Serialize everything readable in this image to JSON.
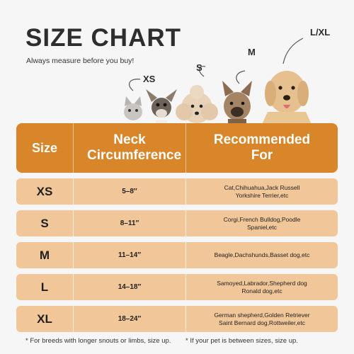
{
  "header": {
    "title": "SIZE CHART",
    "subtitle": "Always measure before you buy!"
  },
  "hero": {
    "labels": [
      "XS",
      "S",
      "M",
      "L/XL"
    ]
  },
  "table": {
    "columns": [
      "Size",
      "Neck Circumference",
      "Recommended For"
    ],
    "rows": [
      {
        "size": "XS",
        "neck": "5–8″",
        "rec_line1": "Cat,Chihuahua,Jack Russell",
        "rec_line2": "Yorkshire Terrier,etc"
      },
      {
        "size": "S",
        "neck": "8–11″",
        "rec_line1": "Corgi,French Bulldog,Poodle",
        "rec_line2": "Spaniel,etc"
      },
      {
        "size": "M",
        "neck": "11–14″",
        "rec_line1": "Beagle,Dachshunds,Basset dog,etc",
        "rec_line2": ""
      },
      {
        "size": "L",
        "neck": "14–18″",
        "rec_line1": "Samoyed,Labrador,Shepherd dog",
        "rec_line2": "Ronald dog,etc"
      },
      {
        "size": "XL",
        "neck": "18–24″",
        "rec_line1": "German shepherd,Golden Retriever",
        "rec_line2": "Saint Bernard dog,Rottweiler,etc"
      }
    ]
  },
  "footer": {
    "note1": "* For breeds with longer snouts or limbs, size up.",
    "note2": "* If your pet is between sizes, size up."
  },
  "colors": {
    "header_bg": "#d9862b",
    "row_bg": "#f1c79a",
    "page_bg": "#f6f6f6"
  }
}
